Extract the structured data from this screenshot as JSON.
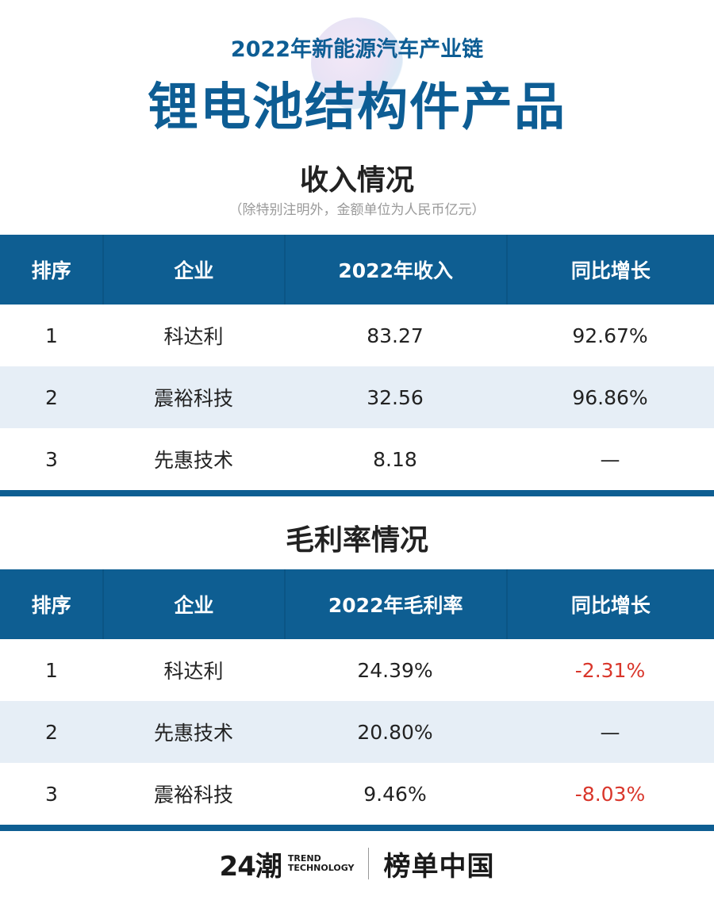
{
  "header": {
    "subtitle": "2022年新能源汽车产业链",
    "title": "锂电池结构件产品"
  },
  "revenue": {
    "title": "收入情况",
    "note": "（除特别注明外，金额单位为人民币亿元）",
    "columns": [
      "排序",
      "企业",
      "2022年收入",
      "同比增长"
    ],
    "rows": [
      {
        "rank": "1",
        "company": "科达利",
        "value": "83.27",
        "growth": "92.67%"
      },
      {
        "rank": "2",
        "company": "震裕科技",
        "value": "32.56",
        "growth": "96.86%"
      },
      {
        "rank": "3",
        "company": "先惠技术",
        "value": "8.18",
        "growth": "—"
      }
    ]
  },
  "margin": {
    "title": "毛利率情况",
    "columns": [
      "排序",
      "企业",
      "2022年毛利率",
      "同比增长"
    ],
    "rows": [
      {
        "rank": "1",
        "company": "科达利",
        "value": "24.39%",
        "growth": "-2.31%"
      },
      {
        "rank": "2",
        "company": "先惠技术",
        "value": "20.80%",
        "growth": "—"
      },
      {
        "rank": "3",
        "company": "震裕科技",
        "value": "9.46%",
        "growth": "-8.03%"
      }
    ]
  },
  "footer": {
    "logo_main": "24潮",
    "logo_sub_1": "TREND",
    "logo_sub_2": "TECHNOLOGY",
    "logo_cn": "榜单中国"
  },
  "colors": {
    "brand": "#0e5e92",
    "negative": "#d9362b",
    "stripe": "#e6eef6"
  }
}
